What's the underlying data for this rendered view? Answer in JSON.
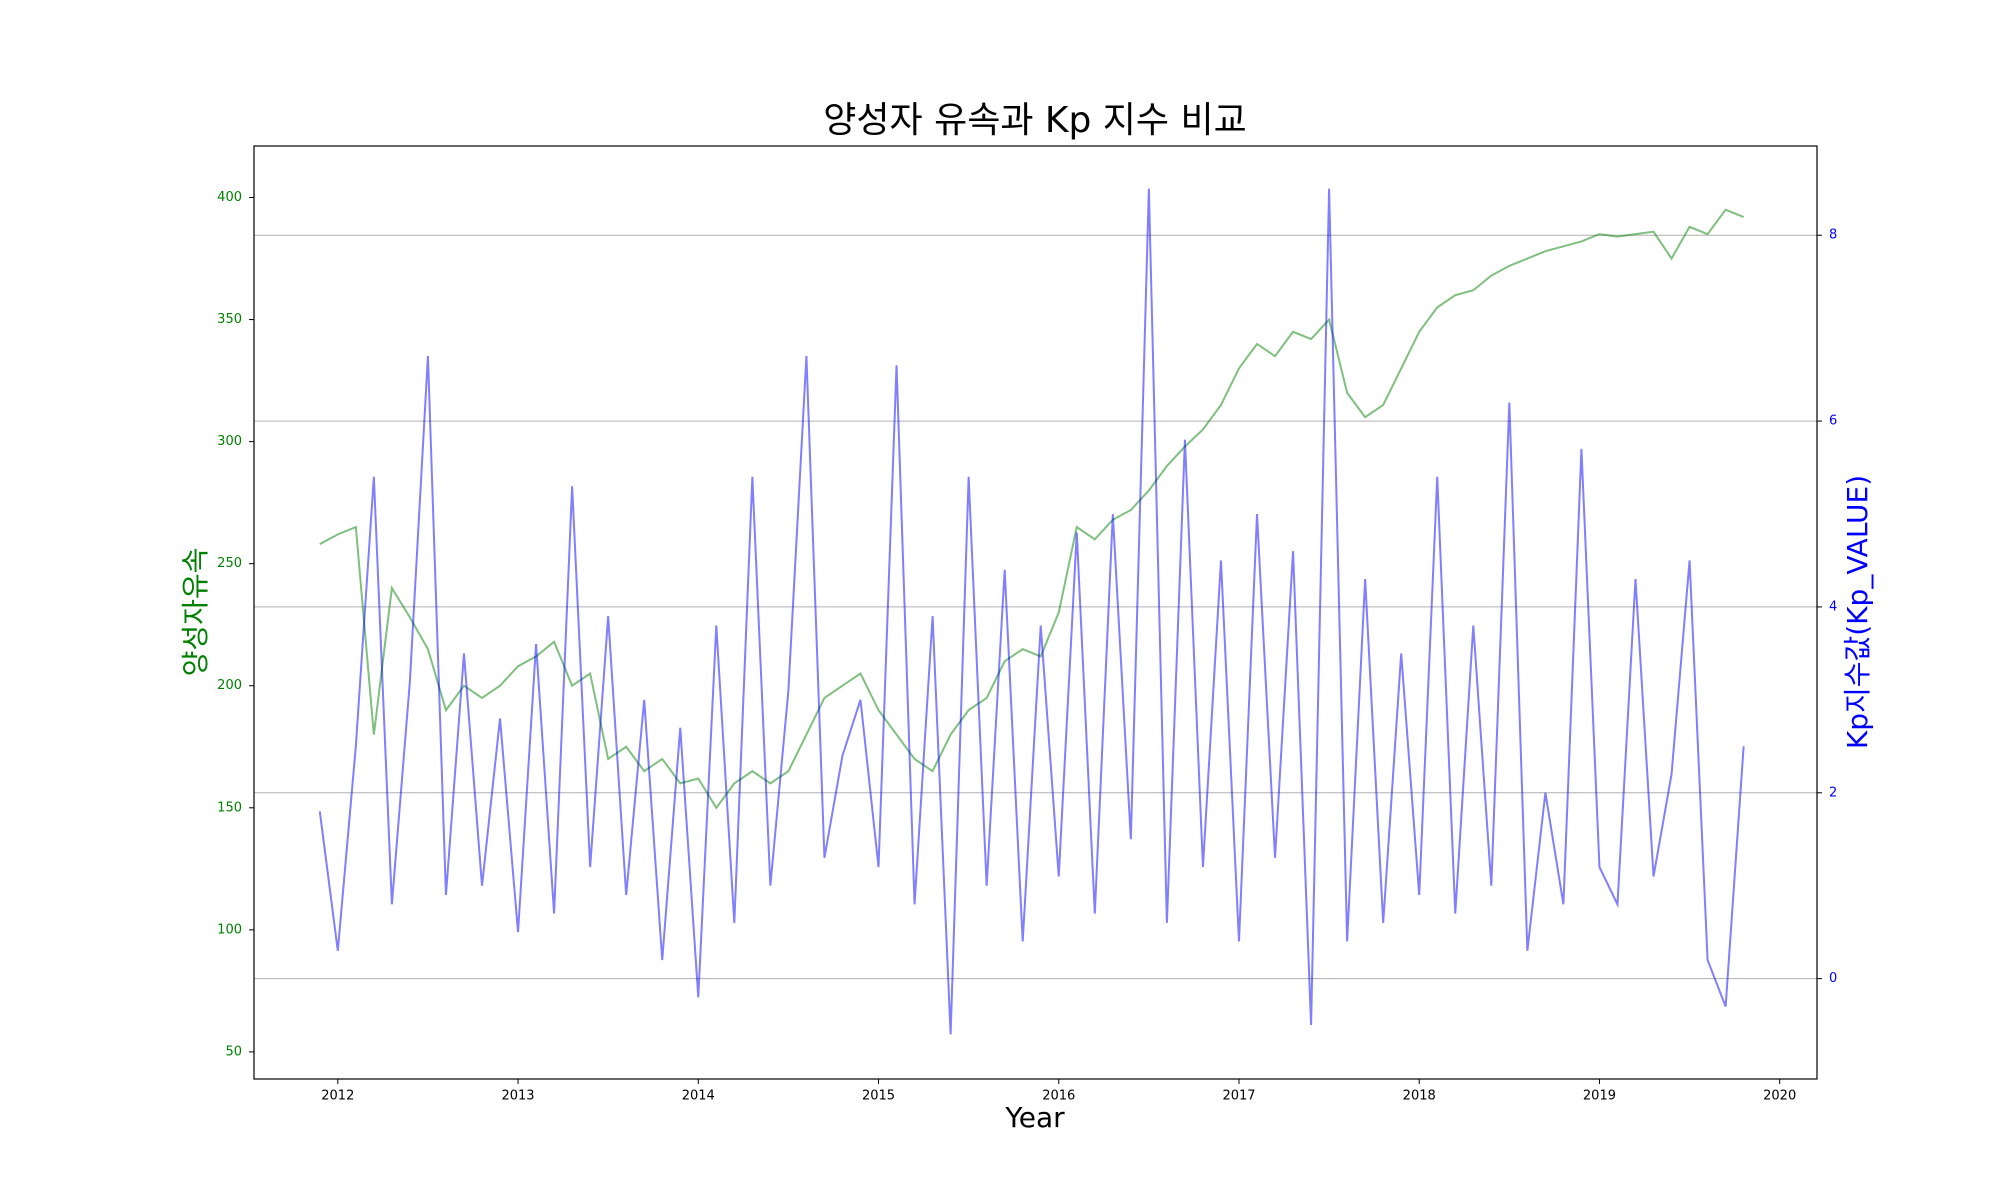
{
  "chart_data": {
    "type": "line",
    "title": "양성자 유속과 Kp 지수 비교",
    "xlabel": "Year",
    "ylabel": "양성자유속",
    "y2label": "Kp지수값(Kp_VALUE)",
    "ylabel_color": "green",
    "y2label_color": "blue",
    "x": [
      2011.9,
      2012.0,
      2012.1,
      2012.2,
      2012.3,
      2012.4,
      2012.5,
      2012.6,
      2012.7,
      2012.8,
      2012.9,
      2013.0,
      2013.1,
      2013.2,
      2013.3,
      2013.4,
      2013.5,
      2013.6,
      2013.7,
      2013.8,
      2013.9,
      2014.0,
      2014.1,
      2014.2,
      2014.3,
      2014.4,
      2014.5,
      2014.6,
      2014.7,
      2014.8,
      2014.9,
      2015.0,
      2015.1,
      2015.2,
      2015.3,
      2015.4,
      2015.5,
      2015.6,
      2015.7,
      2015.8,
      2015.9,
      2016.0,
      2016.1,
      2016.2,
      2016.3,
      2016.4,
      2016.5,
      2016.6,
      2016.7,
      2016.8,
      2016.9,
      2017.0,
      2017.1,
      2017.2,
      2017.3,
      2017.4,
      2017.5,
      2017.6,
      2017.7,
      2017.8,
      2017.9,
      2018.0,
      2018.1,
      2018.2,
      2018.3,
      2018.4,
      2018.5,
      2018.6,
      2018.7,
      2018.8,
      2018.9,
      2019.0,
      2019.1,
      2019.2,
      2019.3,
      2019.4,
      2019.5,
      2019.6,
      2019.7,
      2019.8
    ],
    "series": [
      {
        "name": "양성자유속",
        "color": "green",
        "opacity": 0.5,
        "values": [
          258,
          262,
          265,
          180,
          240,
          228,
          215,
          190,
          200,
          195,
          200,
          208,
          212,
          218,
          200,
          205,
          170,
          175,
          165,
          170,
          160,
          162,
          150,
          160,
          165,
          160,
          165,
          180,
          195,
          200,
          205,
          190,
          180,
          170,
          165,
          180,
          190,
          195,
          210,
          215,
          212,
          230,
          265,
          260,
          268,
          272,
          280,
          290,
          298,
          305,
          315,
          330,
          340,
          335,
          345,
          342,
          350,
          320,
          310,
          315,
          330,
          345,
          355,
          360,
          362,
          368,
          372,
          375,
          378,
          380,
          382,
          385,
          384,
          385,
          386,
          375,
          388,
          385,
          395,
          392
        ]
      },
      {
        "name": "Kp지수값",
        "color": "blue",
        "opacity": 0.5,
        "axis": "y2",
        "values": [
          1.8,
          0.3,
          2.5,
          5.4,
          0.8,
          3.2,
          6.7,
          0.9,
          3.5,
          1.0,
          2.8,
          0.5,
          3.6,
          0.7,
          5.3,
          1.2,
          3.9,
          0.9,
          3.0,
          0.2,
          2.7,
          -0.2,
          3.8,
          0.6,
          5.4,
          1.0,
          3.1,
          6.7,
          1.3,
          2.4,
          3.0,
          1.2,
          6.6,
          0.8,
          3.9,
          -0.6,
          5.4,
          1.0,
          4.4,
          0.4,
          3.8,
          1.1,
          4.8,
          0.7,
          5.0,
          1.5,
          8.5,
          0.6,
          5.8,
          1.2,
          4.5,
          0.4,
          5.0,
          1.3,
          4.6,
          -0.5,
          8.5,
          0.4,
          4.3,
          0.6,
          3.5,
          0.9,
          5.4,
          0.7,
          3.8,
          1.0,
          6.2,
          0.3,
          2.0,
          0.8,
          5.7,
          1.2,
          0.8,
          4.3,
          1.1,
          2.2,
          4.5,
          0.2,
          -0.3,
          2.5
        ]
      }
    ],
    "xlim": [
      2011.535,
      2020.207
    ],
    "xticks": [
      2012,
      2013,
      2014,
      2015,
      2016,
      2017,
      2018,
      2019,
      2020
    ],
    "ylim": [
      38.9,
      421.1
    ],
    "yticks": [
      50,
      100,
      150,
      200,
      250,
      300,
      350,
      400
    ],
    "y2lim": [
      -1.08,
      8.96
    ],
    "y2ticks": [
      0,
      2,
      4,
      6,
      8
    ],
    "grid": "y2"
  }
}
